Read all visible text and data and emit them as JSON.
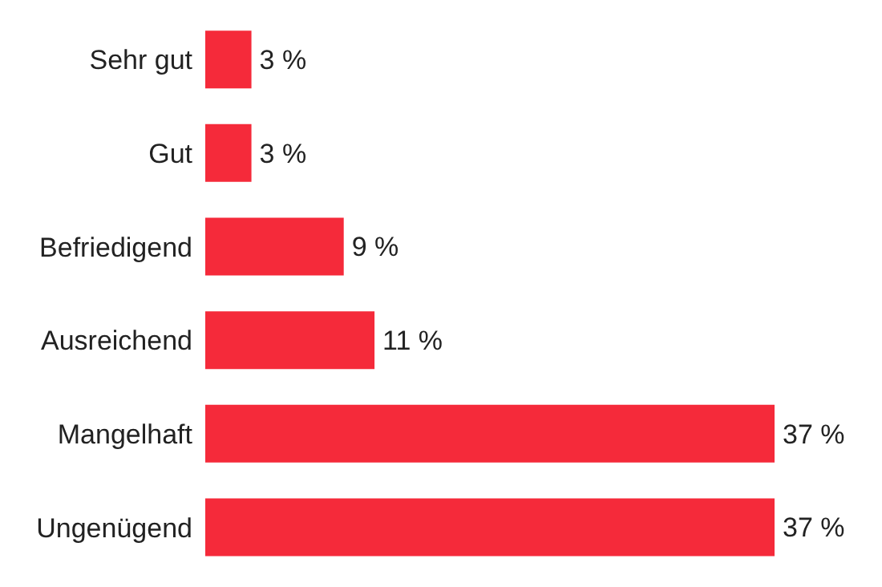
{
  "chart_data": {
    "type": "bar",
    "orientation": "horizontal",
    "categories": [
      "Sehr gut",
      "Gut",
      "Befriedigend",
      "Ausreichend",
      "Mangelhaft",
      "Ungenügend"
    ],
    "values": [
      3,
      3,
      9,
      11,
      37,
      37
    ],
    "value_labels": [
      "3 %",
      "3 %",
      "9 %",
      "11 %",
      "37 %",
      "37 %"
    ],
    "color": "#f52a3a",
    "tick_labels": "y"
  }
}
